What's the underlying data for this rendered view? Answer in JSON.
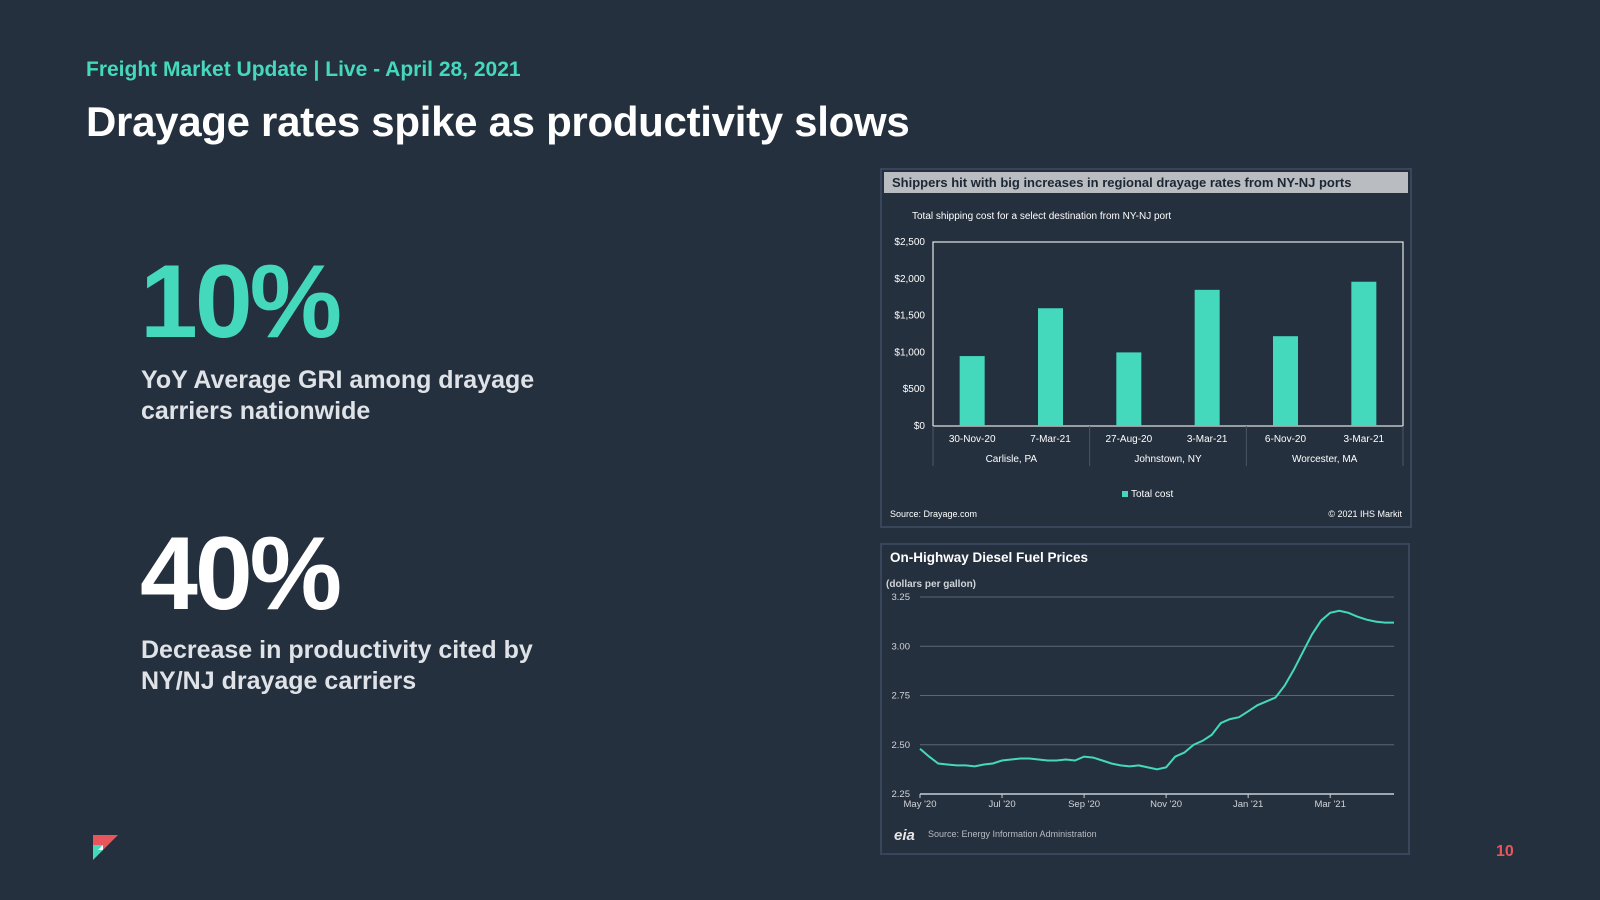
{
  "header": {
    "subtitle": "Freight Market Update | Live - April 28, 2021",
    "title": "Drayage rates spike as productivity slows"
  },
  "stats": [
    {
      "value": "10%",
      "description": "YoY Average GRI among drayage carriers nationwide"
    },
    {
      "value": "40%",
      "description": "Decrease in productivity cited by NY/NJ drayage carriers"
    }
  ],
  "page_number": "10",
  "colors": {
    "accent": "#44d9bd",
    "background": "#25303e",
    "page_number": "#e8555b"
  },
  "chart_data": [
    {
      "type": "bar",
      "header": "Shippers hit with big increases in regional drayage rates from NY-NJ  ports",
      "title": "Total shipping  cost for a select destination from NY-NJ port",
      "categories": [
        "30-Nov-20",
        "7-Mar-21",
        "27-Aug-20",
        "3-Mar-21",
        "6-Nov-20",
        "3-Mar-21"
      ],
      "groups": [
        "Carlisle, PA",
        "Johnstown, NY",
        "Worcester, MA"
      ],
      "series": [
        {
          "name": "Total cost",
          "values": [
            950,
            1600,
            1000,
            1850,
            1220,
            1960
          ]
        }
      ],
      "ylim": [
        0,
        2500
      ],
      "yticks": [
        0,
        500,
        1000,
        1500,
        2000,
        2500
      ],
      "ytick_labels": [
        "$0",
        "$500",
        "$1,000",
        "$1,500",
        "$2,000",
        "$2,500"
      ],
      "source": "Source:   Drayage.com",
      "copyright": "© 2021  IHS Markit",
      "bar_color": "#44d9bd"
    },
    {
      "type": "line",
      "title": "On-Highway Diesel Fuel Prices",
      "ylabel": "(dollars per gallon)",
      "ylim": [
        2.25,
        3.25
      ],
      "yticks": [
        2.25,
        2.5,
        2.75,
        3.0,
        3.25
      ],
      "ytick_labels": [
        "2.25",
        "2.50",
        "2.75",
        "3.00",
        "3.25"
      ],
      "xlim": [
        0,
        52
      ],
      "xticks": [
        0,
        9,
        18,
        27,
        36,
        45
      ],
      "xtick_labels": [
        "May '20",
        "Jul '20",
        "Sep '20",
        "Nov '20",
        "Jan '21",
        "Mar '21"
      ],
      "series": [
        {
          "name": "Diesel price",
          "x": [
            0,
            1,
            2,
            3,
            4,
            5,
            6,
            7,
            8,
            9,
            10,
            11,
            12,
            13,
            14,
            15,
            16,
            17,
            18,
            19,
            20,
            21,
            22,
            23,
            24,
            25,
            26,
            27,
            28,
            29,
            30,
            31,
            32,
            33,
            34,
            35,
            36,
            37,
            38,
            39,
            40,
            41,
            42,
            43,
            44,
            45,
            46,
            47,
            48,
            49,
            50,
            51,
            52
          ],
          "values": [
            2.48,
            2.44,
            2.405,
            2.4,
            2.395,
            2.395,
            2.39,
            2.4,
            2.405,
            2.42,
            2.425,
            2.43,
            2.43,
            2.425,
            2.42,
            2.42,
            2.425,
            2.42,
            2.44,
            2.435,
            2.42,
            2.405,
            2.395,
            2.39,
            2.395,
            2.385,
            2.375,
            2.385,
            2.44,
            2.46,
            2.5,
            2.52,
            2.55,
            2.61,
            2.63,
            2.64,
            2.67,
            2.7,
            2.72,
            2.74,
            2.8,
            2.88,
            2.97,
            3.06,
            3.13,
            3.17,
            3.18,
            3.17,
            3.15,
            3.135,
            3.125,
            3.12,
            3.12
          ]
        }
      ],
      "source": "Source: Energy Information Administration",
      "logo_text": "eia",
      "line_color": "#44d9bd"
    }
  ]
}
